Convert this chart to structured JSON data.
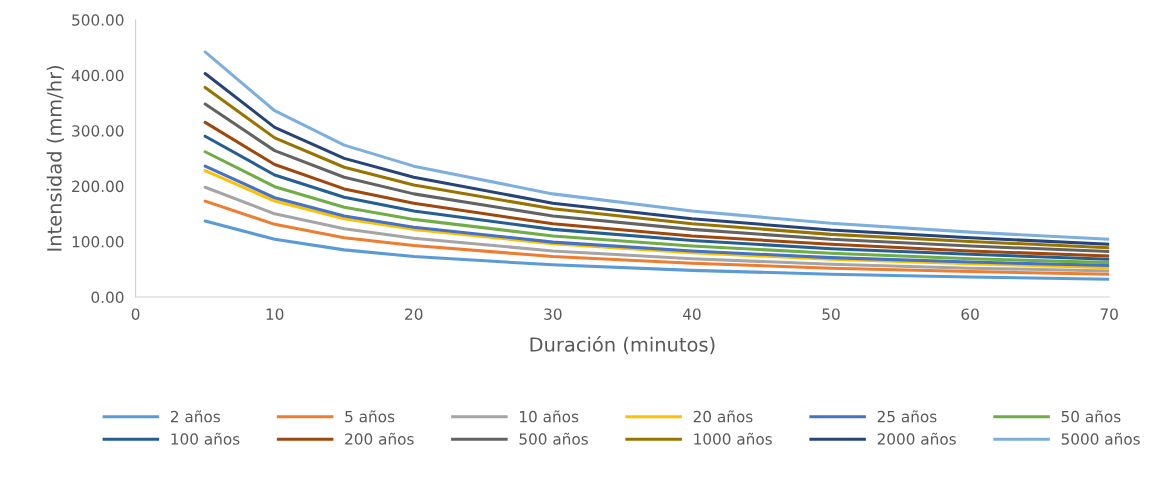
{
  "chart_data": {
    "type": "line",
    "xlabel": "Duración (minutos)",
    "ylabel": "Intensidad (mm/hr)",
    "x": [
      5,
      10,
      15,
      20,
      30,
      40,
      50,
      60,
      70
    ],
    "xlim": [
      0,
      70
    ],
    "xticks": [
      0,
      10,
      20,
      30,
      40,
      50,
      60,
      70
    ],
    "ylim": [
      0,
      500
    ],
    "yticks": [
      {
        "value": 0,
        "label": "0.00"
      },
      {
        "value": 100,
        "label": "100.00"
      },
      {
        "value": 200,
        "label": "200.00"
      },
      {
        "value": 300,
        "label": "300.00"
      },
      {
        "value": 400,
        "label": "400.00"
      },
      {
        "value": 500,
        "label": "500.00"
      }
    ],
    "grid": false,
    "legend": "bottom",
    "marker": "none",
    "line_style": "solid",
    "series": [
      {
        "name": "2 años",
        "color": "#5b9bd5",
        "values": [
          137,
          104,
          85,
          73,
          58,
          48,
          41,
          36,
          32
        ]
      },
      {
        "name": "5 años",
        "color": "#ed7d31",
        "values": [
          173,
          131,
          107,
          93,
          73,
          61,
          52,
          46,
          41
        ]
      },
      {
        "name": "10 años",
        "color": "#a5a5a5",
        "values": [
          198,
          150,
          123,
          106,
          83,
          69,
          59,
          52,
          47
        ]
      },
      {
        "name": "20 años",
        "color": "#ffc000",
        "values": [
          228,
          173,
          141,
          122,
          96,
          80,
          68,
          60,
          53
        ]
      },
      {
        "name": "25 años",
        "color": "#4472c4",
        "values": [
          236,
          179,
          146,
          126,
          99,
          83,
          71,
          63,
          57
        ]
      },
      {
        "name": "50 años",
        "color": "#70ad47",
        "values": [
          262,
          199,
          162,
          140,
          110,
          92,
          79,
          69,
          62
        ]
      },
      {
        "name": "100 años",
        "color": "#255e91",
        "values": [
          290,
          220,
          180,
          155,
          122,
          102,
          87,
          77,
          68
        ]
      },
      {
        "name": "200 años",
        "color": "#9e480e",
        "values": [
          315,
          239,
          195,
          169,
          132,
          110,
          95,
          83,
          74
        ]
      },
      {
        "name": "500 años",
        "color": "#636363",
        "values": [
          348,
          264,
          216,
          186,
          146,
          122,
          104,
          92,
          82
        ]
      },
      {
        "name": "1000 años",
        "color": "#997300",
        "values": [
          378,
          287,
          234,
          202,
          159,
          132,
          113,
          100,
          89
        ]
      },
      {
        "name": "2000 años",
        "color": "#264478",
        "values": [
          403,
          306,
          250,
          216,
          169,
          141,
          121,
          107,
          95
        ]
      },
      {
        "name": "5000 años",
        "color": "#7cafdd",
        "values": [
          442,
          336,
          274,
          236,
          186,
          155,
          133,
          117,
          104
        ]
      }
    ]
  }
}
